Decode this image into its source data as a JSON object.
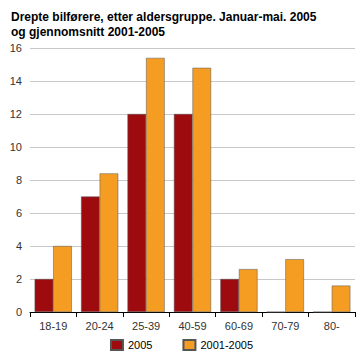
{
  "chart_data": {
    "type": "bar",
    "title": "Drepte bilførere, etter aldersgruppe. Januar-mai. 2005\nog gjennomsnitt 2001-2005",
    "categories": [
      "18-19",
      "20-24",
      "25-39",
      "40-59",
      "60-69",
      "70-79",
      "80-"
    ],
    "series": [
      {
        "name": "2005",
        "color": "#9e0b0f",
        "values": [
          2,
          7,
          12,
          12,
          2,
          0,
          0
        ]
      },
      {
        "name": "2001-2005",
        "color": "#f59d23",
        "values": [
          4,
          8.4,
          15.4,
          14.8,
          2.6,
          3.2,
          1.6
        ]
      }
    ],
    "ylim": [
      0,
      16
    ],
    "yticks": [
      0,
      2,
      4,
      6,
      8,
      10,
      12,
      14,
      16
    ],
    "grid": true,
    "legend": "bottom"
  }
}
